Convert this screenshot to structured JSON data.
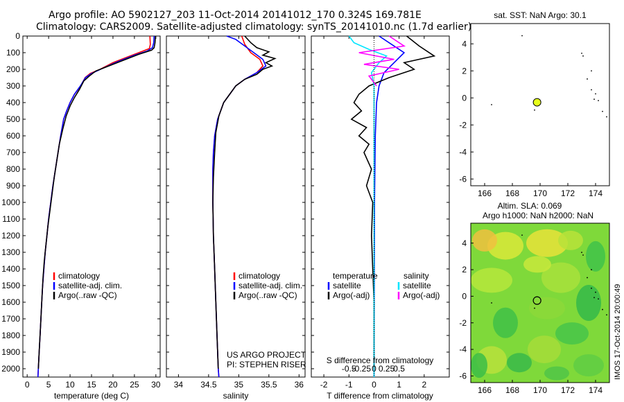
{
  "header": {
    "line1": "Argo profile: AO 5902127_203 11-Oct-2014 20141012_170 0.324S 169.781E",
    "line2": "Climatology: CARS2009. Satellite-adjusted climatology: synTS_20141010.nc (1.7d earlier)"
  },
  "side_label": "IMOS 17-Oct-2014 20:00:49",
  "chart_data": [
    {
      "type": "line",
      "id": "temperature",
      "xlabel": "temperature (deg C)",
      "xlim": [
        -1,
        31
      ],
      "ylim": [
        0,
        2050
      ],
      "xticks": [
        0,
        5,
        10,
        15,
        20,
        25,
        30
      ],
      "yticks": [
        0,
        100,
        200,
        300,
        400,
        500,
        600,
        700,
        800,
        900,
        1000,
        1100,
        1200,
        1300,
        1400,
        1500,
        1600,
        1700,
        1800,
        1900,
        2000
      ],
      "y_inverted": true,
      "legend": [
        "climatology",
        "satellite-adj. clim.",
        "Argo(..raw -QC)"
      ],
      "series": [
        {
          "name": "climatology",
          "color": "#ff0000",
          "points": [
            [
              28.6,
              0
            ],
            [
              28.7,
              50
            ],
            [
              28.5,
              75
            ],
            [
              27,
              90
            ],
            [
              24,
              120
            ],
            [
              20,
              160
            ],
            [
              17,
              200
            ],
            [
              14.7,
              225
            ],
            [
              13.5,
              250
            ],
            [
              12.5,
              300
            ],
            [
              11,
              350
            ],
            [
              10,
              400
            ],
            [
              9.2,
              450
            ],
            [
              8.5,
              500
            ],
            [
              7.8,
              600
            ],
            [
              7.2,
              700
            ],
            [
              6.6,
              800
            ],
            [
              6,
              900
            ],
            [
              5.5,
              1000
            ],
            [
              5,
              1100
            ],
            [
              4.6,
              1200
            ],
            [
              4.2,
              1300
            ],
            [
              3.9,
              1400
            ],
            [
              3.6,
              1500
            ],
            [
              3.4,
              1600
            ],
            [
              3.2,
              1700
            ],
            [
              3,
              1800
            ],
            [
              2.8,
              1900
            ],
            [
              2.6,
              2000
            ],
            [
              2.5,
              2050
            ]
          ]
        },
        {
          "name": "satellite-adj. clim.",
          "color": "#0000ff",
          "points": [
            [
              29.6,
              0
            ],
            [
              29.5,
              40
            ],
            [
              29.2,
              70
            ],
            [
              28,
              90
            ],
            [
              25,
              115
            ],
            [
              21,
              155
            ],
            [
              17.5,
              195
            ],
            [
              15,
              225
            ],
            [
              13.6,
              250
            ],
            [
              12.4,
              300
            ],
            [
              11,
              350
            ],
            [
              10,
              400
            ],
            [
              9.2,
              450
            ],
            [
              8.5,
              500
            ],
            [
              7.8,
              600
            ],
            [
              7.2,
              700
            ],
            [
              6.6,
              800
            ],
            [
              6,
              900
            ],
            [
              5.5,
              1000
            ],
            [
              5,
              1100
            ],
            [
              4.6,
              1200
            ],
            [
              4.2,
              1300
            ],
            [
              3.9,
              1400
            ],
            [
              3.6,
              1500
            ],
            [
              3.4,
              1600
            ],
            [
              3.2,
              1700
            ],
            [
              3,
              1800
            ],
            [
              2.8,
              1900
            ],
            [
              2.6,
              2000
            ],
            [
              2.5,
              2050
            ]
          ]
        },
        {
          "name": "Argo(..raw -QC)",
          "color": "#000000",
          "points": [
            [
              29.9,
              0
            ],
            [
              29.8,
              40
            ],
            [
              29.6,
              70
            ],
            [
              29,
              85
            ],
            [
              26,
              110
            ],
            [
              22,
              150
            ],
            [
              18,
              190
            ],
            [
              16,
              210
            ],
            [
              14.5,
              240
            ],
            [
              13.2,
              270
            ],
            [
              12.2,
              320
            ],
            [
              11,
              370
            ],
            [
              10,
              420
            ],
            [
              9.1,
              480
            ],
            [
              8.3,
              560
            ],
            [
              7.5,
              650
            ],
            [
              6.9,
              750
            ],
            [
              6.3,
              850
            ],
            [
              5.8,
              950
            ],
            [
              5.3,
              1050
            ],
            [
              4.8,
              1150
            ],
            [
              4.4,
              1250
            ],
            [
              4,
              1350
            ],
            [
              3.7,
              1450
            ],
            [
              3.5,
              1550
            ],
            [
              3.3,
              1650
            ],
            [
              3.1,
              1750
            ],
            [
              2.9,
              1850
            ],
            [
              2.7,
              1950
            ],
            [
              2.6,
              2000
            ]
          ]
        }
      ]
    },
    {
      "type": "line",
      "id": "salinity",
      "xlabel": "salinity",
      "xlim": [
        33.8,
        36.1
      ],
      "ylim": [
        0,
        2050
      ],
      "xticks": [
        34,
        34.5,
        35,
        35.5,
        36
      ],
      "y_inverted": true,
      "legend": [
        "climatology",
        "satellite-adj. clim.",
        "Argo(..raw -QC)"
      ],
      "annotation": [
        "US ARGO PROJECT",
        "PI: STEPHEN RISER"
      ],
      "series": [
        {
          "name": "climatology",
          "color": "#ff0000",
          "points": [
            [
              35.05,
              0
            ],
            [
              35.1,
              50
            ],
            [
              35.2,
              100
            ],
            [
              35.35,
              140
            ],
            [
              35.4,
              180
            ],
            [
              35.3,
              220
            ],
            [
              35.1,
              260
            ],
            [
              34.95,
              300
            ],
            [
              34.85,
              350
            ],
            [
              34.75,
              400
            ],
            [
              34.65,
              500
            ],
            [
              34.6,
              600
            ],
            [
              34.58,
              700
            ],
            [
              34.57,
              800
            ],
            [
              34.57,
              1000
            ],
            [
              34.58,
              1200
            ],
            [
              34.6,
              1400
            ],
            [
              34.62,
              1600
            ],
            [
              34.64,
              1800
            ],
            [
              34.66,
              2000
            ],
            [
              34.67,
              2050
            ]
          ]
        },
        {
          "name": "satellite-adj. clim.",
          "color": "#0000ff",
          "points": [
            [
              34.8,
              0
            ],
            [
              34.95,
              20
            ],
            [
              35.1,
              60
            ],
            [
              35.25,
              100
            ],
            [
              35.4,
              140
            ],
            [
              35.45,
              180
            ],
            [
              35.3,
              220
            ],
            [
              35.1,
              260
            ],
            [
              34.95,
              300
            ],
            [
              34.85,
              350
            ],
            [
              34.75,
              400
            ],
            [
              34.65,
              500
            ],
            [
              34.6,
              600
            ],
            [
              34.58,
              700
            ],
            [
              34.57,
              800
            ],
            [
              34.57,
              1000
            ],
            [
              34.58,
              1200
            ],
            [
              34.6,
              1400
            ],
            [
              34.62,
              1600
            ],
            [
              34.64,
              1800
            ],
            [
              34.66,
              2000
            ],
            [
              34.67,
              2050
            ]
          ]
        },
        {
          "name": "Argo(..raw -QC)",
          "color": "#000000",
          "points": [
            [
              35.1,
              0
            ],
            [
              35.2,
              40
            ],
            [
              35.3,
              70
            ],
            [
              35.5,
              95
            ],
            [
              35.4,
              115
            ],
            [
              35.6,
              135
            ],
            [
              35.45,
              160
            ],
            [
              35.55,
              180
            ],
            [
              35.4,
              200
            ],
            [
              35.3,
              230
            ],
            [
              35.1,
              260
            ],
            [
              34.95,
              300
            ],
            [
              34.85,
              350
            ],
            [
              34.75,
              400
            ],
            [
              34.67,
              480
            ],
            [
              34.62,
              580
            ],
            [
              34.6,
              700
            ],
            [
              34.58,
              850
            ],
            [
              34.57,
              1000
            ],
            [
              34.58,
              1200
            ],
            [
              34.6,
              1400
            ],
            [
              34.62,
              1600
            ],
            [
              34.64,
              1800
            ],
            [
              34.66,
              2000
            ]
          ]
        }
      ]
    },
    {
      "type": "line",
      "id": "difference",
      "xlabel_T": "T difference from climatology",
      "xlabel_S": "S difference from climatology",
      "xlim_T": [
        -2.5,
        3
      ],
      "xticks_T": [
        -2,
        -1,
        0,
        1,
        2
      ],
      "xticks_S_labels": [
        "-0.5",
        "-0.25",
        "0",
        "0.25",
        "0.5"
      ],
      "xticks_S_pos": [
        -1,
        -0.5,
        0,
        0.5,
        1
      ],
      "ylim": [
        0,
        2050
      ],
      "y_inverted": true,
      "legend_T_title": "temperature",
      "legend_S_title": "salinity",
      "legend": [
        "satellite",
        "Argo(-adj)",
        "satellite",
        "Argo(-adj)"
      ],
      "series": [
        {
          "name": "T satellite",
          "color": "#0000ff",
          "points": [
            [
              0.2,
              0
            ],
            [
              0.8,
              60
            ],
            [
              1.2,
              100
            ],
            [
              0.8,
              160
            ],
            [
              0.4,
              220
            ],
            [
              0.2,
              300
            ],
            [
              0.1,
              400
            ],
            [
              0.05,
              600
            ],
            [
              0.02,
              1000
            ],
            [
              0,
              2050
            ]
          ]
        },
        {
          "name": "T Argo(-adj)",
          "color": "#000000",
          "points": [
            [
              1.3,
              0
            ],
            [
              1.8,
              60
            ],
            [
              2.4,
              120
            ],
            [
              1.2,
              160
            ],
            [
              1.6,
              200
            ],
            [
              0.6,
              250
            ],
            [
              -0.2,
              300
            ],
            [
              -0.6,
              350
            ],
            [
              -0.8,
              400
            ],
            [
              -0.5,
              450
            ],
            [
              -0.9,
              500
            ],
            [
              -0.3,
              550
            ],
            [
              -0.6,
              600
            ],
            [
              -0.2,
              650
            ],
            [
              -0.4,
              700
            ],
            [
              -0.1,
              800
            ],
            [
              -0.3,
              900
            ],
            [
              -0.05,
              1000
            ],
            [
              -0.1,
              1200
            ],
            [
              -0.05,
              1400
            ],
            [
              0,
              1600
            ],
            [
              0,
              2000
            ]
          ]
        },
        {
          "name": "S satellite",
          "color": "#00e5ff",
          "points": [
            [
              -1.0,
              0
            ],
            [
              -0.8,
              40
            ],
            [
              -0.2,
              80
            ],
            [
              0.5,
              120
            ],
            [
              0.2,
              160
            ],
            [
              -0.1,
              220
            ],
            [
              0,
              300
            ],
            [
              0,
              2050
            ]
          ]
        },
        {
          "name": "S Argo(-adj)",
          "color": "#ff00ff",
          "points": [
            [
              0.6,
              0
            ],
            [
              1.2,
              60
            ],
            [
              -0.6,
              100
            ],
            [
              0.8,
              140
            ],
            [
              -0.4,
              170
            ],
            [
              1.0,
              200
            ],
            [
              -0.2,
              240
            ],
            [
              0.1,
              300
            ]
          ]
        }
      ]
    },
    {
      "type": "scatter",
      "id": "sst_map",
      "title": "sat. SST: NaN Argo: 30.1",
      "xlim": [
        165,
        175
      ],
      "ylim": [
        -6.5,
        5.5
      ],
      "xticks": [
        166,
        168,
        170,
        172,
        174
      ],
      "yticks": [
        -6,
        -4,
        -2,
        0,
        2,
        4
      ],
      "marker": {
        "lon": 169.781,
        "lat": -0.324,
        "color": "#e6ff1a"
      }
    },
    {
      "type": "heatmap",
      "id": "sla_map",
      "title_line1": "Altim. SLA: 0.069",
      "title_line2": "Argo h1000: NaN h2000: NaN",
      "xlim": [
        165,
        175
      ],
      "ylim": [
        -6.5,
        5.5
      ],
      "xticks": [
        166,
        168,
        170,
        172,
        174
      ],
      "yticks": [
        -6,
        -4,
        -2,
        0,
        2,
        4
      ],
      "marker": {
        "lon": 169.781,
        "lat": -0.324
      }
    }
  ]
}
